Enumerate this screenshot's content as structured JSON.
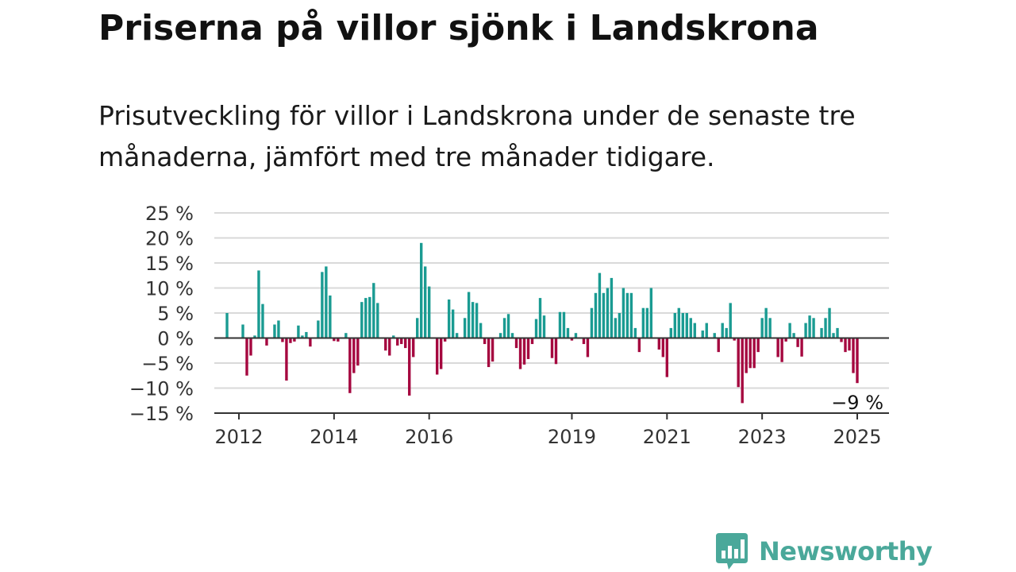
{
  "title": "Priserna på villor sjönk i Landskrona",
  "subtitle": "Prisutveckling för villor i Landskrona under de senaste tre månaderna, jämfört med tre månader tidigare.",
  "brand": {
    "name": "Newsworthy",
    "icon": "newsworthy-bar-chart-icon",
    "color": "#4aa89a"
  },
  "colors": {
    "positive": "#1a9b92",
    "negative": "#a5073f",
    "grid": "#d9d9d9",
    "axis": "#333333"
  },
  "chart_data": {
    "type": "bar",
    "title": "",
    "xlabel": "",
    "ylabel": "",
    "ylim": [
      -15,
      25
    ],
    "yticks": [
      25,
      20,
      15,
      10,
      5,
      0,
      -5,
      -10,
      -15
    ],
    "ytick_labels": [
      "25 %",
      "20 %",
      "15 %",
      "10 %",
      "5 %",
      "0 %",
      "−5 %",
      "−10 %",
      "−15 %"
    ],
    "xticks": [
      {
        "label": "2012",
        "x": "2012-01"
      },
      {
        "label": "2014",
        "x": "2014-01"
      },
      {
        "label": "2016",
        "x": "2016-01"
      },
      {
        "label": "2019",
        "x": "2019-01"
      },
      {
        "label": "2021",
        "x": "2021-01"
      },
      {
        "label": "2023",
        "x": "2023-01"
      },
      {
        "label": "2025",
        "x": "2025-01"
      }
    ],
    "grid": true,
    "last_value_label": "−9 %",
    "start": "2011-09",
    "series": [
      {
        "values": [
          0,
          5,
          0,
          0,
          0,
          2.7,
          -7.5,
          -3.5,
          0.5,
          13.5,
          6.8,
          -1.5,
          0,
          2.7,
          3.5,
          -0.8,
          -8.5,
          -1,
          -0.7,
          2.5,
          0.5,
          1.2,
          -1.7,
          0,
          3.5,
          13.2,
          14.3,
          8.5,
          -0.6,
          -0.7,
          0,
          1,
          -11,
          -7,
          -5.5,
          7.2,
          8,
          8.2,
          11,
          7,
          0,
          -2.5,
          -3.5,
          0.5,
          -1.5,
          -1.2,
          -2,
          -11.5,
          -3.8,
          4,
          19,
          14.3,
          10.3,
          0,
          -7.3,
          -6.2,
          -0.7,
          7.7,
          5.7,
          1,
          0,
          4,
          9.2,
          7.2,
          7,
          3,
          -1.2,
          -5.8,
          -4.7,
          0,
          1,
          4,
          4.8,
          1,
          -2,
          -6.2,
          -5.3,
          -4.2,
          -1.2,
          3.8,
          8,
          4.5,
          0,
          -4,
          -5.2,
          5.2,
          5.2,
          2,
          -0.5,
          1,
          0,
          -1.2,
          -3.8,
          6,
          9,
          13,
          9,
          10,
          12,
          4,
          5,
          10,
          9,
          9,
          2,
          -2.8,
          6,
          6,
          10,
          0,
          -2.3,
          -3.8,
          -7.8,
          2,
          5,
          6,
          5,
          5,
          4,
          3,
          0,
          1.5,
          3,
          0,
          1,
          -2.8,
          3,
          2,
          7,
          -0.5,
          -9.8,
          -13,
          -7,
          -6,
          -6,
          -2.8,
          4,
          6,
          4,
          0,
          -3.8,
          -4.8,
          -0.7,
          3,
          1,
          -1.8,
          -3.7,
          3,
          4.5,
          4,
          0,
          2,
          4,
          6,
          1,
          2,
          -0.8,
          -2.8,
          -2.5,
          -7,
          -9
        ]
      }
    ]
  }
}
